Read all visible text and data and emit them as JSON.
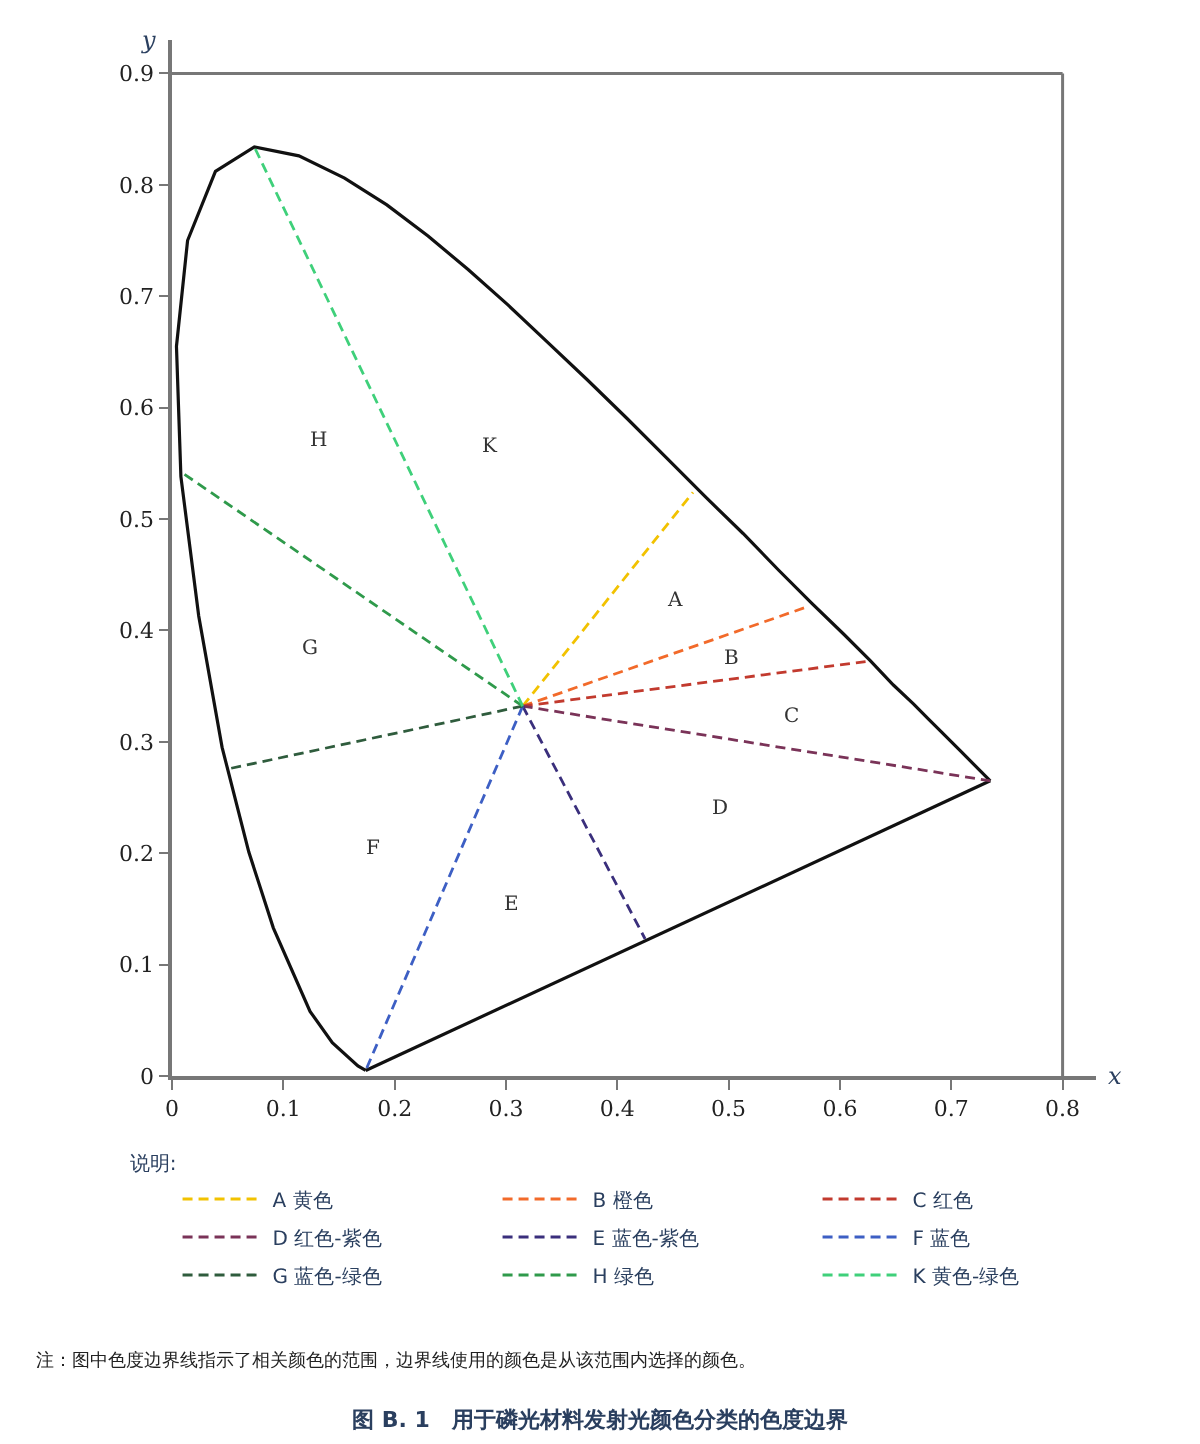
{
  "chart_data": {
    "type": "line",
    "title": "图 B. 1　用于磷光材料发射光颜色分类的色度边界",
    "xlabel": "x",
    "ylabel": "y",
    "legend_title": "说明:",
    "legend": "bottom",
    "marker": "none",
    "xlim": [
      0,
      0.83
    ],
    "ylim": [
      0,
      0.93
    ],
    "xticks": [
      0,
      0.1,
      0.2,
      0.3,
      0.4,
      0.5,
      0.6,
      0.7,
      0.8
    ],
    "yticks": [
      0,
      0.1,
      0.2,
      0.3,
      0.4,
      0.5,
      0.6,
      0.7,
      0.8,
      0.9
    ],
    "ref_lines": [
      {
        "axis": "y",
        "value": 0.9,
        "color": "#777777"
      },
      {
        "axis": "x",
        "value": 0.8,
        "color": "#777777"
      }
    ],
    "series": [
      {
        "color": "#111111",
        "line_style": "solid",
        "x": [
          0.174,
          0.167,
          0.144,
          0.124,
          0.091,
          0.069,
          0.045,
          0.024,
          0.008,
          0.004,
          0.014,
          0.039,
          0.074,
          0.114,
          0.155,
          0.193,
          0.23,
          0.266,
          0.302,
          0.337,
          0.373,
          0.409,
          0.444,
          0.479,
          0.513,
          0.545,
          0.575,
          0.603,
          0.627,
          0.648,
          0.666,
          0.68,
          0.692,
          0.701,
          0.708,
          0.735
        ],
        "values": [
          0.005,
          0.009,
          0.03,
          0.058,
          0.133,
          0.201,
          0.295,
          0.413,
          0.538,
          0.655,
          0.75,
          0.812,
          0.834,
          0.826,
          0.806,
          0.782,
          0.754,
          0.724,
          0.692,
          0.659,
          0.625,
          0.59,
          0.555,
          0.52,
          0.487,
          0.454,
          0.424,
          0.397,
          0.373,
          0.351,
          0.334,
          0.32,
          0.308,
          0.299,
          0.292,
          0.265
        ]
      },
      {
        "color": "#111111",
        "line_style": "solid",
        "x": [
          0.174,
          0.735
        ],
        "values": [
          0.005,
          0.265
        ]
      },
      {
        "name": "A 黄色",
        "color": "#f2c200",
        "line_style": "dashed",
        "x": [
          0.315,
          0.468
        ],
        "values": [
          0.332,
          0.524
        ]
      },
      {
        "name": "B 橙色",
        "color": "#f26a2a",
        "line_style": "dashed",
        "x": [
          0.315,
          0.57
        ],
        "values": [
          0.332,
          0.421
        ]
      },
      {
        "name": "C 红色",
        "color": "#c23a2e",
        "line_style": "dashed",
        "x": [
          0.315,
          0.623
        ],
        "values": [
          0.332,
          0.372
        ]
      },
      {
        "name": "D 红色-紫色",
        "color": "#7a3358",
        "line_style": "dashed",
        "x": [
          0.315,
          0.735
        ],
        "values": [
          0.332,
          0.265
        ]
      },
      {
        "name": "E 蓝色-紫色",
        "color": "#3a2f7c",
        "line_style": "dashed",
        "x": [
          0.315,
          0.425
        ],
        "values": [
          0.332,
          0.123
        ]
      },
      {
        "name": "F 蓝色",
        "color": "#3d5fc4",
        "line_style": "dashed",
        "x": [
          0.315,
          0.174
        ],
        "values": [
          0.332,
          0.005
        ]
      },
      {
        "name": "G 蓝色-绿色",
        "color": "#2f5c3d",
        "line_style": "dashed",
        "x": [
          0.315,
          0.052
        ],
        "values": [
          0.332,
          0.276
        ]
      },
      {
        "name": "H 绿色",
        "color": "#2f9a4b",
        "line_style": "dashed",
        "x": [
          0.315,
          0.007
        ],
        "values": [
          0.332,
          0.543
        ]
      },
      {
        "name": "K 黄色-绿色",
        "color": "#3fd07a",
        "line_style": "dashed",
        "x": [
          0.315,
          0.073
        ],
        "values": [
          0.332,
          0.836
        ]
      }
    ],
    "annotations": [
      "A",
      "B",
      "C",
      "D",
      "E",
      "F",
      "G",
      "H",
      "K",
      "注：图中色度边界线指示了相关颜色的范围，边界线使用的颜色是从该范围内选择的颜色。"
    ]
  }
}
